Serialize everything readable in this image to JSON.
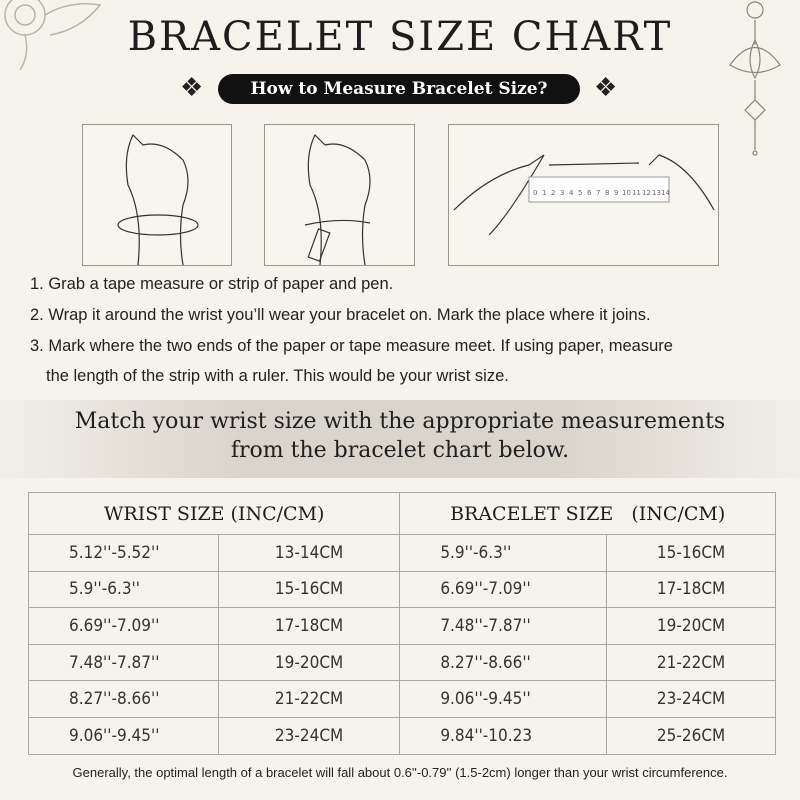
{
  "title": "BRACELET SIZE CHART",
  "subtitle": "How to Measure Bracelet Size?",
  "ruler_numbers": [
    "0",
    "1",
    "2",
    "3",
    "4",
    "5",
    "6",
    "7",
    "8",
    "9",
    "10",
    "11",
    "12",
    "13",
    "14"
  ],
  "steps": [
    "1. Grab a tape measure or strip of paper and pen.",
    "2. Wrap it around the wrist you’ll wear your bracelet on. Mark the place where it joins.",
    "3. Mark where the two ends of the paper or tape measure meet. If using paper, measure",
    "the length of the strip with a ruler. This would be your wrist size."
  ],
  "band": {
    "line1": "Match your wrist size with the appropriate measurements",
    "line2": "from the bracelet chart below."
  },
  "table": {
    "headers": [
      "WRIST SIZE (INC/CM)",
      "BRACELET SIZE   (INC/CM)"
    ],
    "rows": [
      [
        "5.12''-5.52''",
        "13-14CM",
        "5.9''-6.3''",
        "15-16CM"
      ],
      [
        "5.9''-6.3''",
        "15-16CM",
        "6.69''-7.09''",
        "17-18CM"
      ],
      [
        "6.69''-7.09''",
        "17-18CM",
        "7.48''-7.87''",
        "19-20CM"
      ],
      [
        "7.48''-7.87''",
        "19-20CM",
        "8.27''-8.66''",
        "21-22CM"
      ],
      [
        "8.27''-8.66''",
        "21-22CM",
        "9.06''-9.45''",
        "23-24CM"
      ],
      [
        "9.06''-9.45''",
        "23-24CM",
        "9.84''-10.23",
        "25-26CM"
      ]
    ]
  },
  "footer": "Generally, the optimal length of a bracelet will fall about 0.6''-0.79'' (1.5-2cm) longer than your wrist circumference."
}
